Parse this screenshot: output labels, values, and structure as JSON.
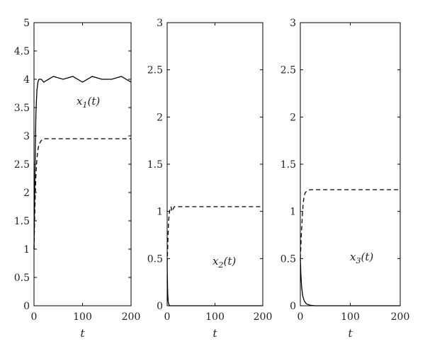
{
  "chart_data": [
    {
      "type": "line",
      "xlabel": "t",
      "xlim": [
        0,
        200
      ],
      "ylim": [
        0,
        5
      ],
      "xticks": [
        "0",
        "100",
        "200"
      ],
      "yticks": [
        "0",
        "0.5",
        "1",
        "1.5",
        "2",
        "2.5",
        "3",
        "3.5",
        "4",
        "4.5",
        "5"
      ],
      "annotation": "x1(t)",
      "series": [
        {
          "style": "solid",
          "x": [
            0,
            2,
            4,
            6,
            8,
            10,
            15,
            20,
            40,
            60,
            80,
            100,
            120,
            140,
            160,
            180,
            200
          ],
          "y": [
            1.0,
            2.4,
            3.4,
            3.8,
            3.95,
            4.0,
            4.0,
            3.95,
            4.05,
            4.0,
            4.05,
            3.95,
            4.05,
            4.0,
            4.0,
            4.05,
            3.95
          ]
        },
        {
          "style": "dashed",
          "x": [
            0,
            2,
            4,
            6,
            8,
            10,
            15,
            20,
            30,
            50,
            100,
            150,
            200
          ],
          "y": [
            1.0,
            1.8,
            2.3,
            2.6,
            2.75,
            2.85,
            2.92,
            2.95,
            2.95,
            2.95,
            2.95,
            2.95,
            2.95
          ]
        }
      ]
    },
    {
      "type": "line",
      "xlabel": "t",
      "xlim": [
        0,
        200
      ],
      "ylim": [
        0,
        3
      ],
      "xticks": [
        "0",
        "100",
        "200"
      ],
      "yticks": [
        "0",
        "0.5",
        "1",
        "1.5",
        "2",
        "2.5",
        "3"
      ],
      "annotation": "x2(t)",
      "series": [
        {
          "style": "solid",
          "x": [
            0,
            0.5,
            1,
            2,
            3,
            5,
            10,
            200
          ],
          "y": [
            0.45,
            0.3,
            0.15,
            0.05,
            0.02,
            0.0,
            0.0,
            0.0
          ]
        },
        {
          "style": "dashed",
          "x": [
            0,
            1,
            2,
            3,
            5,
            8,
            10,
            15,
            20,
            50,
            100,
            150,
            200
          ],
          "y": [
            0.45,
            0.6,
            0.75,
            0.9,
            1.0,
            1.05,
            1.0,
            1.05,
            1.05,
            1.05,
            1.05,
            1.05,
            1.05
          ]
        }
      ]
    },
    {
      "type": "line",
      "xlabel": "t",
      "xlim": [
        0,
        200
      ],
      "ylim": [
        0,
        3
      ],
      "xticks": [
        "0",
        "100",
        "200"
      ],
      "yticks": [
        "0",
        "0.5",
        "1",
        "1.5",
        "2",
        "2.5",
        "3"
      ],
      "annotation": "x3(t)",
      "series": [
        {
          "style": "solid",
          "x": [
            0,
            1,
            2,
            3,
            5,
            8,
            12,
            20,
            30,
            50,
            100,
            200
          ],
          "y": [
            0.5,
            0.35,
            0.25,
            0.18,
            0.1,
            0.05,
            0.02,
            0.005,
            0.0,
            0.0,
            0.0,
            0.0
          ]
        },
        {
          "style": "dashed",
          "x": [
            0,
            2,
            4,
            6,
            8,
            10,
            12,
            15,
            20,
            30,
            50,
            100,
            150,
            200
          ],
          "y": [
            0.5,
            0.75,
            0.95,
            1.1,
            1.17,
            1.2,
            1.21,
            1.22,
            1.23,
            1.23,
            1.23,
            1.23,
            1.23,
            1.23
          ]
        }
      ]
    }
  ]
}
